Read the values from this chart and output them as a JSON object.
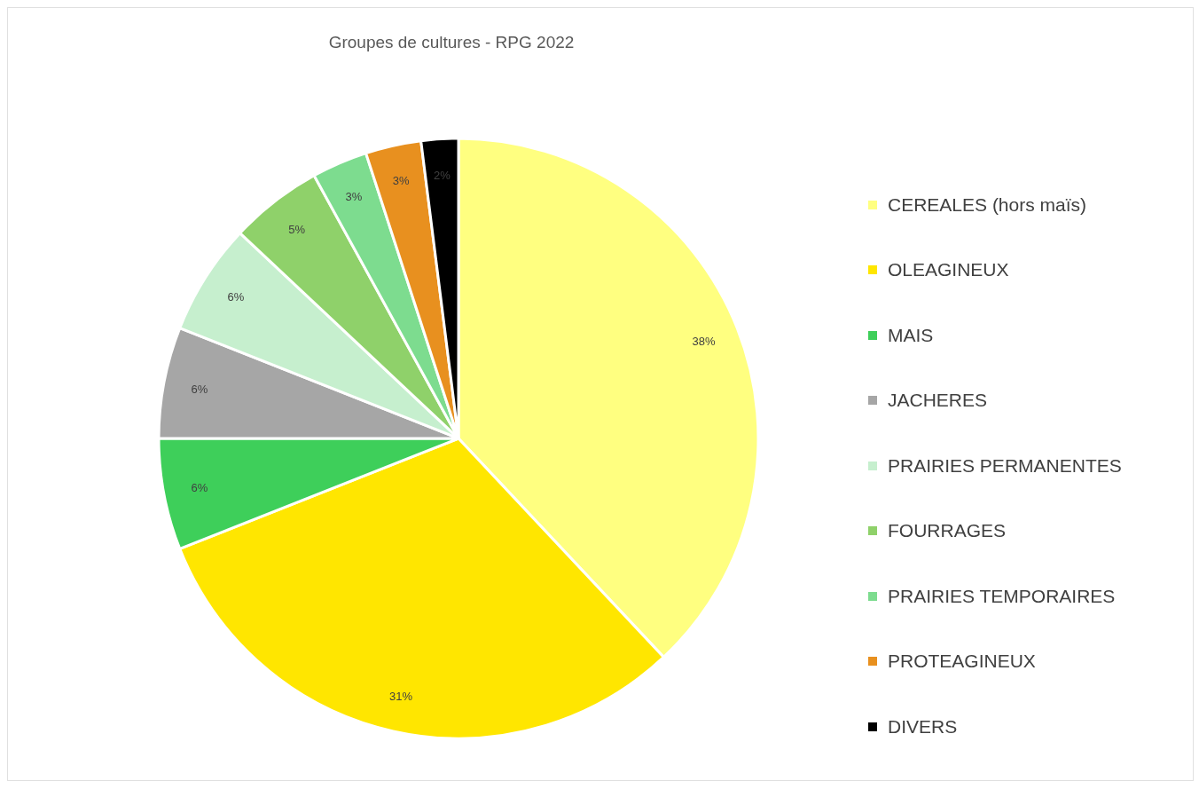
{
  "chart_data": {
    "type": "pie",
    "title": "Groupes de cultures - RPG 2022",
    "categories": [
      "CEREALES (hors maïs)",
      "OLEAGINEUX",
      "MAIS",
      "JACHERES",
      "PRAIRIES PERMANENTES",
      "FOURRAGES",
      "PRAIRIES TEMPORAIRES",
      "PROTEAGINEUX",
      "DIVERS"
    ],
    "values": [
      38,
      31,
      6,
      6,
      6,
      5,
      3,
      3,
      2
    ],
    "value_labels": [
      "38%",
      "31%",
      "6%",
      "6%",
      "6%",
      "5%",
      "3%",
      "3%",
      "2%"
    ],
    "colors": [
      "#ffff80",
      "#ffe600",
      "#3ecf5a",
      "#a6a6a6",
      "#c6efce",
      "#8fd16a",
      "#7ddc8f",
      "#e8901f",
      "#000000"
    ],
    "legend": "right"
  }
}
